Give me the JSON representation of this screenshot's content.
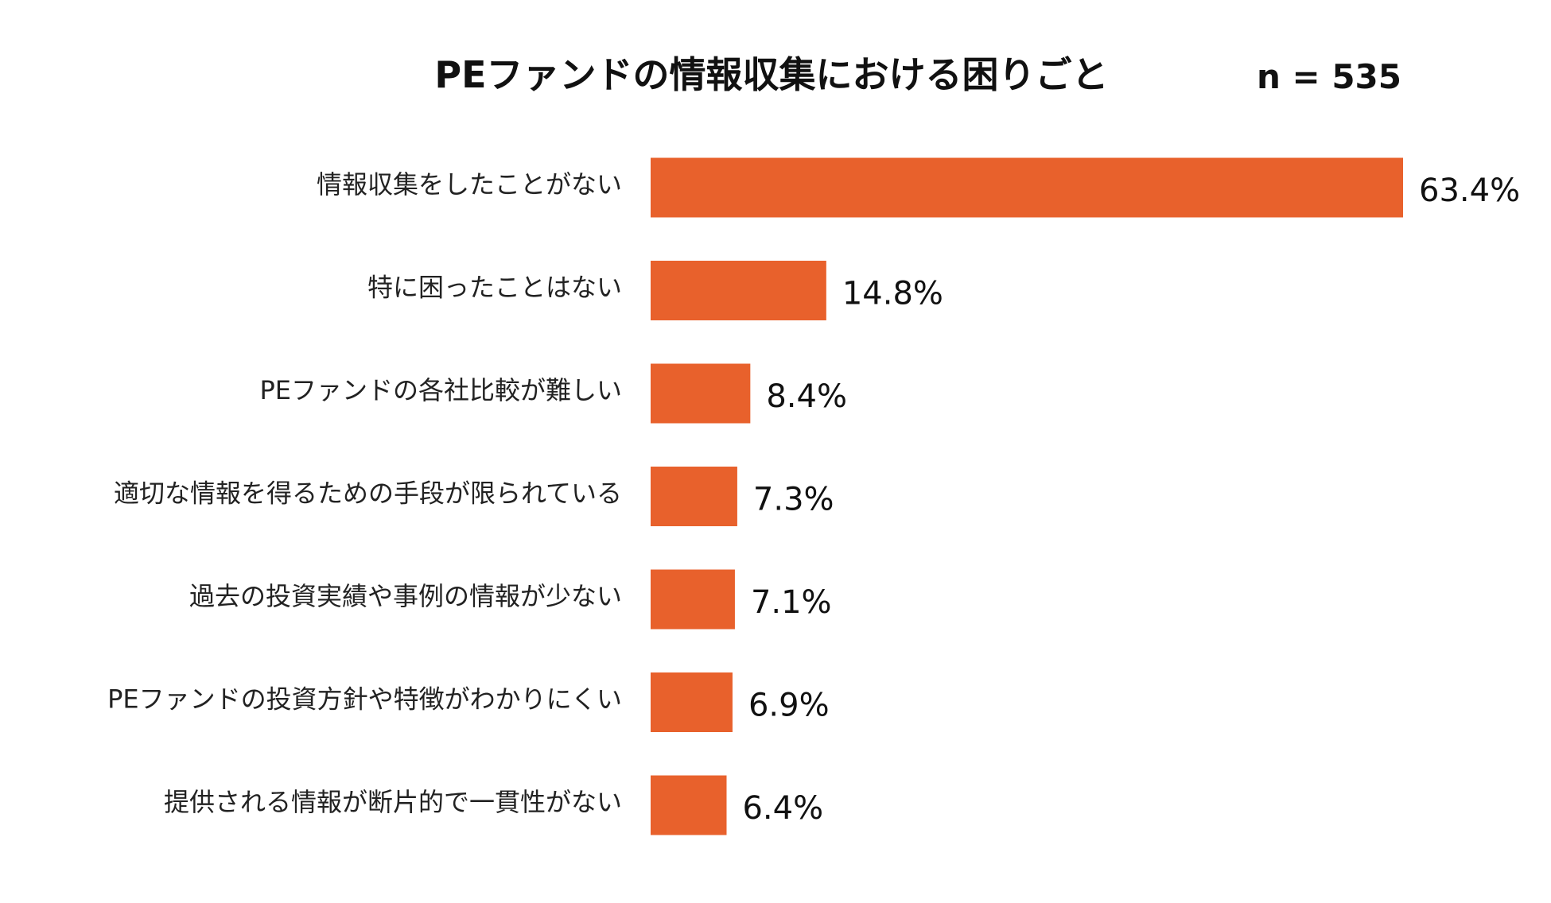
{
  "chart_data": {
    "type": "bar",
    "orientation": "horizontal",
    "title": "PEファンドの情報収集における困りごと",
    "sample_size_label": "n = 535",
    "categories": [
      "情報収集をしたことがない",
      "特に困ったことはない",
      "PEファンドの各社比較が難しい",
      "適切な情報を得るための手段が限られている",
      "過去の投資実績や事例の情報が少ない",
      "PEファンドの投資方針や特徴がわかりにくい",
      "提供される情報が断片的で一貫性がない"
    ],
    "values": [
      63.4,
      14.8,
      8.4,
      7.3,
      7.1,
      6.9,
      6.4
    ],
    "value_labels": [
      "63.4%",
      "14.8%",
      "8.4%",
      "7.3%",
      "7.1%",
      "6.9%",
      "6.4%"
    ],
    "unit": "%",
    "xlim": [
      0,
      63.4
    ],
    "bar_color": "#E8612C",
    "grid": false,
    "legend": "none"
  }
}
